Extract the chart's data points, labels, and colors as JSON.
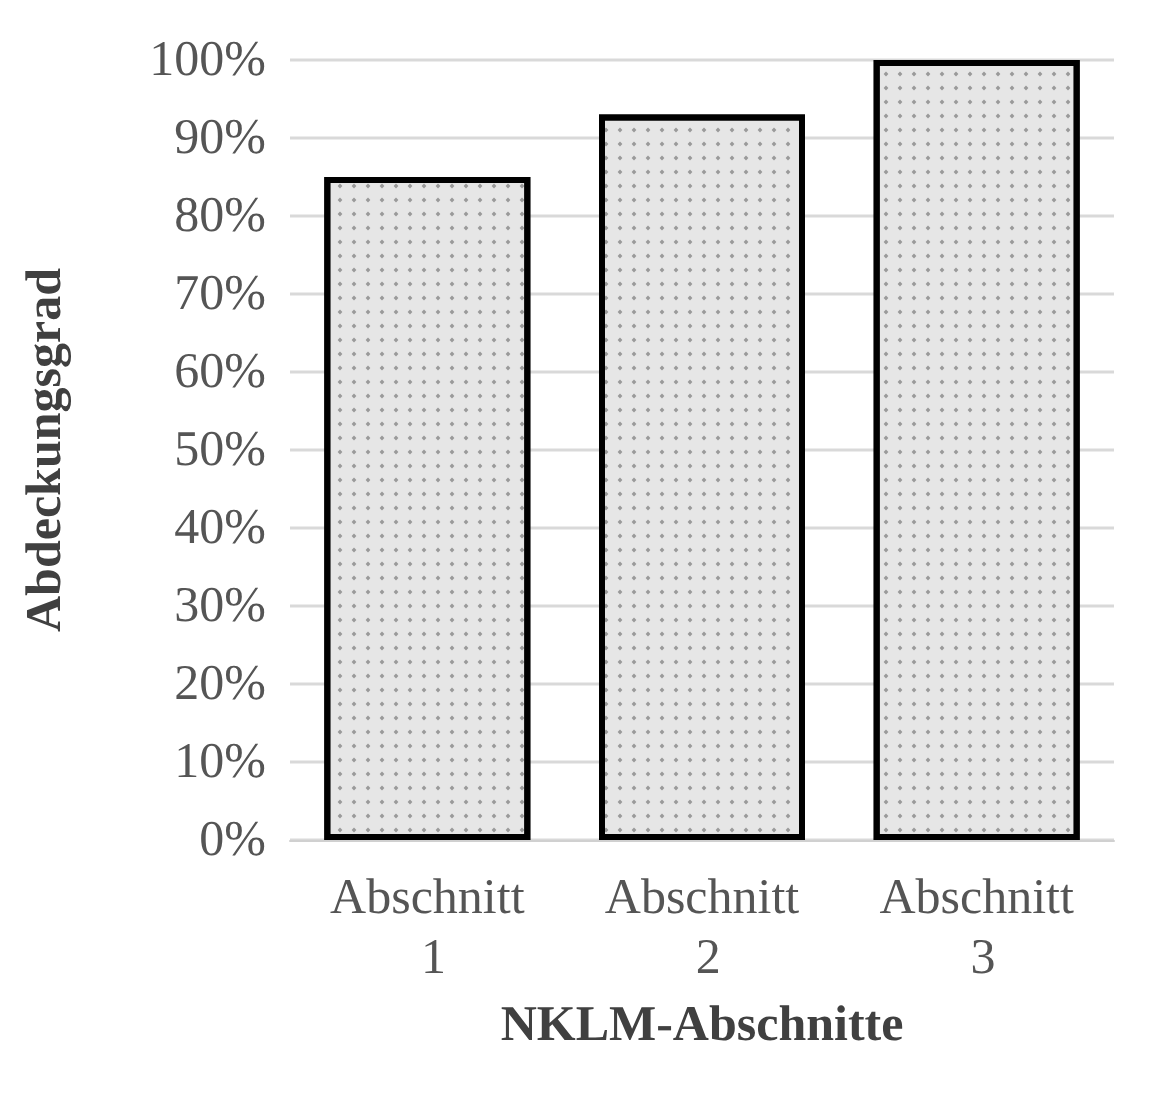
{
  "chart_data": {
    "type": "bar",
    "xlabel": "NKLM-Abschnitte",
    "ylabel": "Abdeckungsgrad",
    "categories": [
      "Abschnitt 1",
      "Abschnitt 2",
      "Abschnitt 3"
    ],
    "values": [
      85,
      93,
      100
    ],
    "color": "#e6e6e6",
    "ylim": [
      0,
      100
    ],
    "yticks": [
      {
        "value": 0,
        "label": "0%"
      },
      {
        "value": 10,
        "label": "10%"
      },
      {
        "value": 20,
        "label": "20%"
      },
      {
        "value": 30,
        "label": "30%"
      },
      {
        "value": 40,
        "label": "40%"
      },
      {
        "value": 50,
        "label": "50%"
      },
      {
        "value": 60,
        "label": "60%"
      },
      {
        "value": 70,
        "label": "70%"
      },
      {
        "value": 80,
        "label": "80%"
      },
      {
        "value": 90,
        "label": "90%"
      },
      {
        "value": 100,
        "label": "100%"
      }
    ],
    "grid": "y"
  }
}
